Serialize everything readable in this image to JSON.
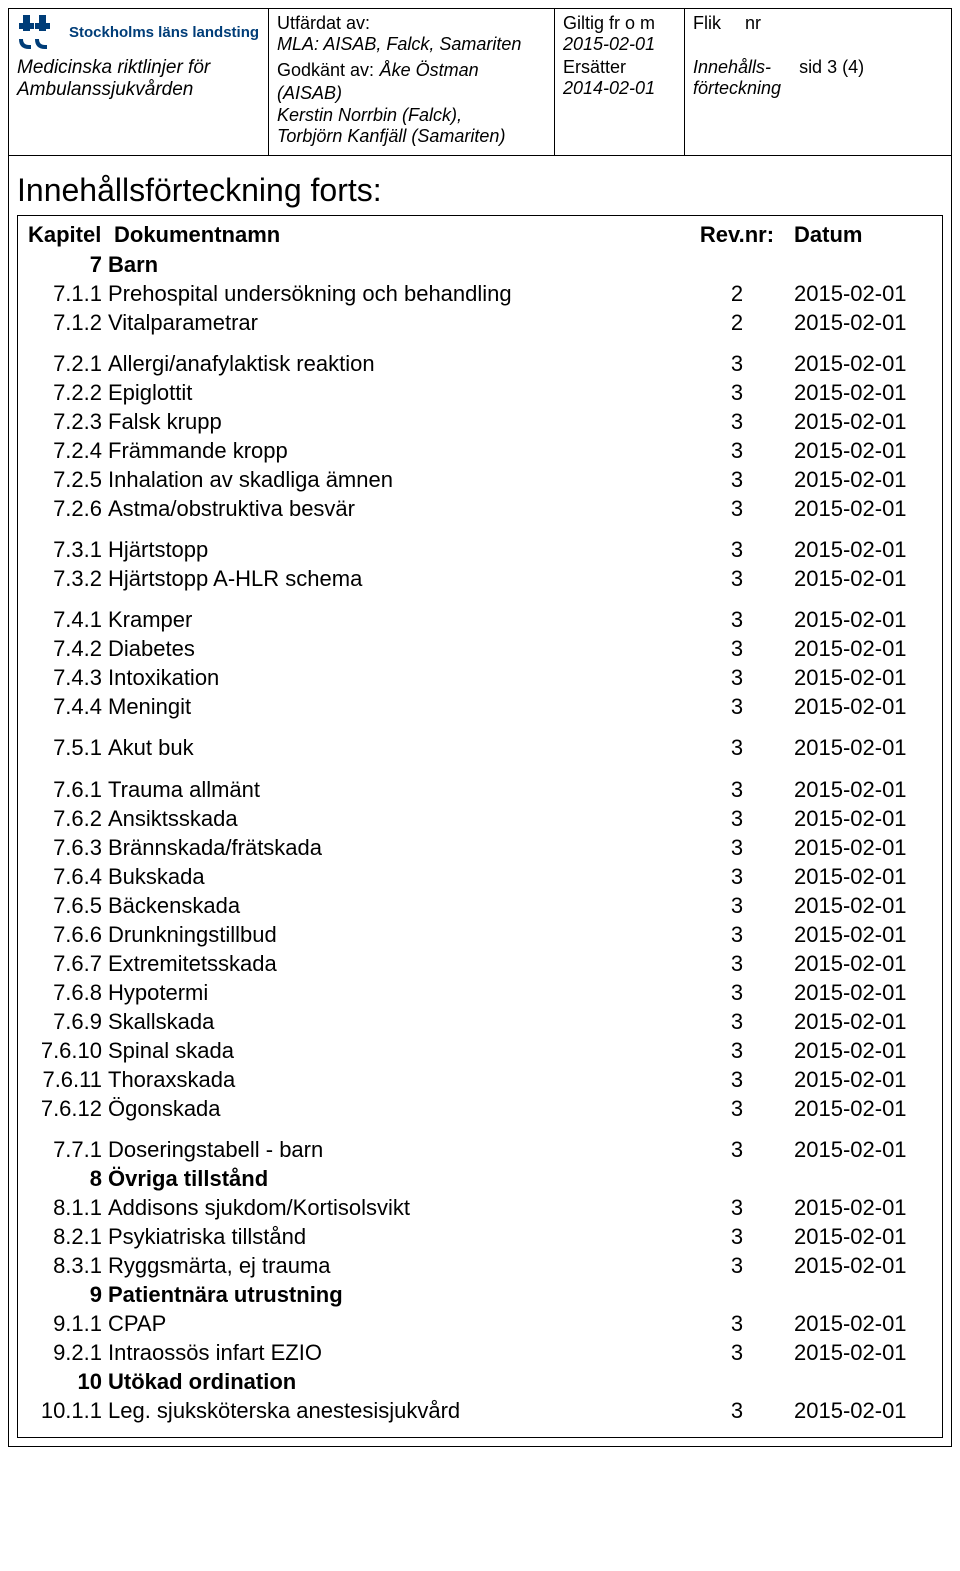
{
  "header": {
    "logo_text": "Stockholms läns landsting",
    "subtitle1": "Medicinska riktlinjer för",
    "subtitle2": "Ambulanssjukvården",
    "issued_by_label": "Utfärdat av:",
    "issued_by_value": "MLA: AISAB, Falck, Samariten",
    "approved_by_label": "Godkänt av:",
    "approved_by_value": "Åke Östman (AISAB)",
    "approved_by_line2": "Kerstin Norrbin (Falck),",
    "approved_by_line3": "Torbjörn Kanfjäll (Samariten)",
    "valid_from_label": "Giltig fr o m",
    "valid_from_value": "2015-02-01",
    "replaces_label": "Ersätter",
    "replaces_value": "2014-02-01",
    "flik_label": "Flik",
    "nr_label": "nr",
    "toc_link1": "Innehålls-",
    "toc_link2": "förteckning",
    "page": "sid 3 (4)"
  },
  "section_title": "Innehållsförteckning forts:",
  "columns": {
    "kapitel": "Kapitel",
    "dokumentnamn": "Dokumentnamn",
    "rev": "Rev.nr:",
    "datum": "Datum"
  },
  "rows": [
    {
      "num": "7",
      "name": "Barn",
      "rev": "",
      "date": "",
      "bold": true
    },
    {
      "num": "7.1.1",
      "name": "Prehospital undersökning och behandling",
      "rev": "2",
      "date": "2015-02-01"
    },
    {
      "num": "7.1.2",
      "name": "Vitalparametrar",
      "rev": "2",
      "date": "2015-02-01"
    },
    {
      "gap": true
    },
    {
      "num": "7.2.1",
      "name": "Allergi/anafylaktisk reaktion",
      "rev": "3",
      "date": "2015-02-01"
    },
    {
      "num": "7.2.2",
      "name": "Epiglottit",
      "rev": "3",
      "date": "2015-02-01"
    },
    {
      "num": "7.2.3",
      "name": "Falsk krupp",
      "rev": "3",
      "date": "2015-02-01"
    },
    {
      "num": "7.2.4",
      "name": "Främmande kropp",
      "rev": "3",
      "date": "2015-02-01"
    },
    {
      "num": "7.2.5",
      "name": "Inhalation av skadliga ämnen",
      "rev": "3",
      "date": "2015-02-01"
    },
    {
      "num": "7.2.6",
      "name": "Astma/obstruktiva besvär",
      "rev": "3",
      "date": "2015-02-01"
    },
    {
      "gap": true
    },
    {
      "num": "7.3.1",
      "name": "Hjärtstopp",
      "rev": "3",
      "date": "2015-02-01"
    },
    {
      "num": "7.3.2",
      "name": "Hjärtstopp A-HLR schema",
      "rev": "3",
      "date": "2015-02-01"
    },
    {
      "gap": true
    },
    {
      "num": "7.4.1",
      "name": "Kramper",
      "rev": "3",
      "date": "2015-02-01"
    },
    {
      "num": "7.4.2",
      "name": "Diabetes",
      "rev": "3",
      "date": "2015-02-01"
    },
    {
      "num": "7.4.3",
      "name": "Intoxikation",
      "rev": "3",
      "date": "2015-02-01"
    },
    {
      "num": "7.4.4",
      "name": "Meningit",
      "rev": "3",
      "date": "2015-02-01"
    },
    {
      "gap": true
    },
    {
      "num": "7.5.1",
      "name": "Akut buk",
      "rev": "3",
      "date": "2015-02-01"
    },
    {
      "gap": true
    },
    {
      "num": "7.6.1",
      "name": "Trauma allmänt",
      "rev": "3",
      "date": "2015-02-01"
    },
    {
      "num": "7.6.2",
      "name": "Ansiktsskada",
      "rev": "3",
      "date": "2015-02-01"
    },
    {
      "num": "7.6.3",
      "name": "Brännskada/frätskada",
      "rev": "3",
      "date": "2015-02-01"
    },
    {
      "num": "7.6.4",
      "name": "Bukskada",
      "rev": "3",
      "date": "2015-02-01"
    },
    {
      "num": "7.6.5",
      "name": "Bäckenskada",
      "rev": "3",
      "date": "2015-02-01"
    },
    {
      "num": "7.6.6",
      "name": "Drunkningstillbud",
      "rev": "3",
      "date": "2015-02-01"
    },
    {
      "num": "7.6.7",
      "name": "Extremitetsskada",
      "rev": "3",
      "date": "2015-02-01"
    },
    {
      "num": "7.6.8",
      "name": "Hypotermi",
      "rev": "3",
      "date": "2015-02-01"
    },
    {
      "num": "7.6.9",
      "name": "Skallskada",
      "rev": "3",
      "date": "2015-02-01"
    },
    {
      "num": "7.6.10",
      "name": "Spinal skada",
      "rev": "3",
      "date": "2015-02-01"
    },
    {
      "num": "7.6.11",
      "name": "Thoraxskada",
      "rev": "3",
      "date": "2015-02-01"
    },
    {
      "num": "7.6.12",
      "name": "Ögonskada",
      "rev": "3",
      "date": "2015-02-01"
    },
    {
      "gap": true
    },
    {
      "num": "7.7.1",
      "name": "Doseringstabell - barn",
      "rev": "3",
      "date": "2015-02-01"
    },
    {
      "num": "8",
      "name": "Övriga tillstånd",
      "rev": "",
      "date": "",
      "bold": true
    },
    {
      "num": "8.1.1",
      "name": "Addisons sjukdom/Kortisolsvikt",
      "rev": "3",
      "date": "2015-02-01"
    },
    {
      "num": "8.2.1",
      "name": "Psykiatriska tillstånd",
      "rev": "3",
      "date": "2015-02-01"
    },
    {
      "num": "8.3.1",
      "name": "Ryggsmärta, ej trauma",
      "rev": "3",
      "date": "2015-02-01"
    },
    {
      "num": "9",
      "name": "Patientnära utrustning",
      "rev": "",
      "date": "",
      "bold": true
    },
    {
      "num": "9.1.1",
      "name": "CPAP",
      "rev": "3",
      "date": "2015-02-01"
    },
    {
      "num": "9.2.1",
      "name": "Intraossös infart EZIO",
      "rev": "3",
      "date": "2015-02-01"
    },
    {
      "num": "10",
      "name": "Utökad ordination",
      "rev": "",
      "date": "",
      "bold": true
    },
    {
      "num": "10.1.1",
      "name": "Leg. sjuksköterska anestesisjukvård",
      "rev": "3",
      "date": "2015-02-01"
    }
  ]
}
